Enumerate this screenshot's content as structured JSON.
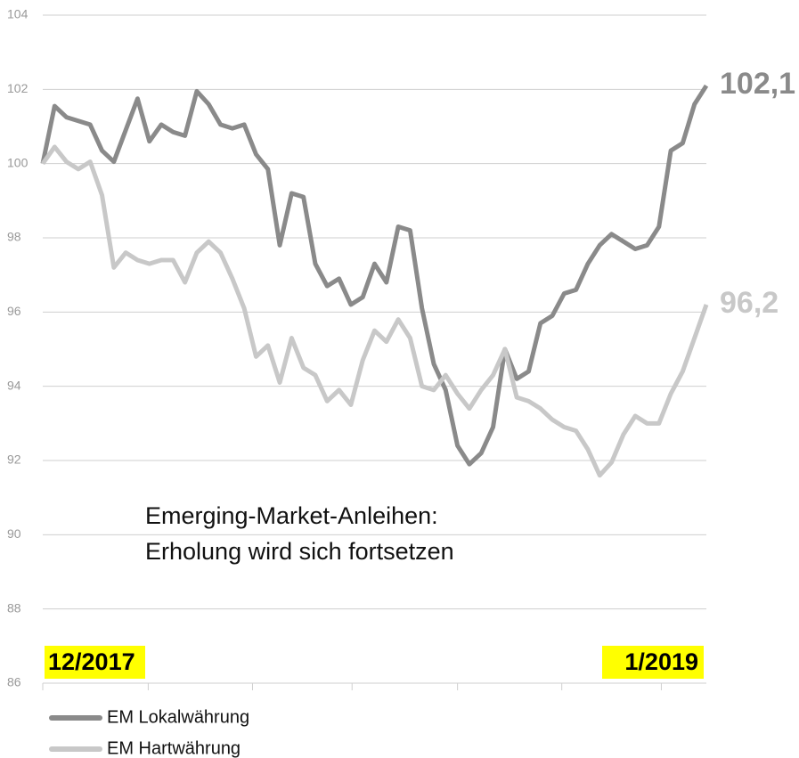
{
  "chart_data": {
    "type": "line",
    "annotations": [
      "Emerging-Market-Anleihen:",
      "Erholung wird sich fortsetzen"
    ],
    "date_labels": [
      "12/2017",
      "1/2019"
    ],
    "x": [
      0,
      1,
      2,
      3,
      4,
      5,
      6,
      7,
      8,
      9,
      10,
      11,
      12,
      13,
      14,
      15,
      16,
      17,
      18,
      19,
      20,
      21,
      22,
      23,
      24,
      25,
      26,
      27,
      28,
      29,
      30,
      31,
      32,
      33,
      34,
      35,
      36,
      37,
      38,
      39,
      40,
      41,
      42,
      43,
      44,
      45,
      46,
      47,
      48,
      49,
      50,
      51,
      52,
      53,
      54,
      55,
      56
    ],
    "series": [
      {
        "name": "EM Lokalwährung",
        "color": "#8a8a8a",
        "end_label": "102,1",
        "values": [
          100,
          101.55,
          101.25,
          101.15,
          101.05,
          100.35,
          100.05,
          100.9,
          101.75,
          100.6,
          101.05,
          100.85,
          100.75,
          101.95,
          101.6,
          101.05,
          100.95,
          101.05,
          100.25,
          99.85,
          97.8,
          99.2,
          99.1,
          97.3,
          96.7,
          96.9,
          96.2,
          96.4,
          97.3,
          96.8,
          98.3,
          98.2,
          96.1,
          94.6,
          93.9,
          92.4,
          91.9,
          92.2,
          92.9,
          95.0,
          94.2,
          94.4,
          95.7,
          95.9,
          96.5,
          96.6,
          97.3,
          97.8,
          98.1,
          97.9,
          97.7,
          97.8,
          98.3,
          100.35,
          100.55,
          101.6,
          102.1
        ]
      },
      {
        "name": "EM Hartwährung",
        "color": "#c8c8c8",
        "end_label": "96,2",
        "values": [
          100,
          100.45,
          100.05,
          99.85,
          100.05,
          99.15,
          97.2,
          97.6,
          97.4,
          97.3,
          97.4,
          97.4,
          96.8,
          97.6,
          97.9,
          97.6,
          96.9,
          96.1,
          94.8,
          95.1,
          94.1,
          95.3,
          94.5,
          94.3,
          93.6,
          93.9,
          93.5,
          94.7,
          95.5,
          95.2,
          95.8,
          95.3,
          94.0,
          93.9,
          94.3,
          93.8,
          93.4,
          93.9,
          94.3,
          95.0,
          93.7,
          93.6,
          93.4,
          93.1,
          92.9,
          92.8,
          92.3,
          91.6,
          91.95,
          92.7,
          93.2,
          93.0,
          93.0,
          93.8,
          94.4,
          95.3,
          96.2
        ]
      }
    ],
    "xlim": [
      0,
      56
    ],
    "xticks": [
      0,
      8.9,
      17.7,
      26.1,
      35,
      43.8,
      52.2
    ],
    "ylim": [
      86,
      104
    ],
    "yticks": [
      86,
      88,
      90,
      92,
      94,
      96,
      98,
      100,
      102,
      104
    ],
    "grid": true
  }
}
